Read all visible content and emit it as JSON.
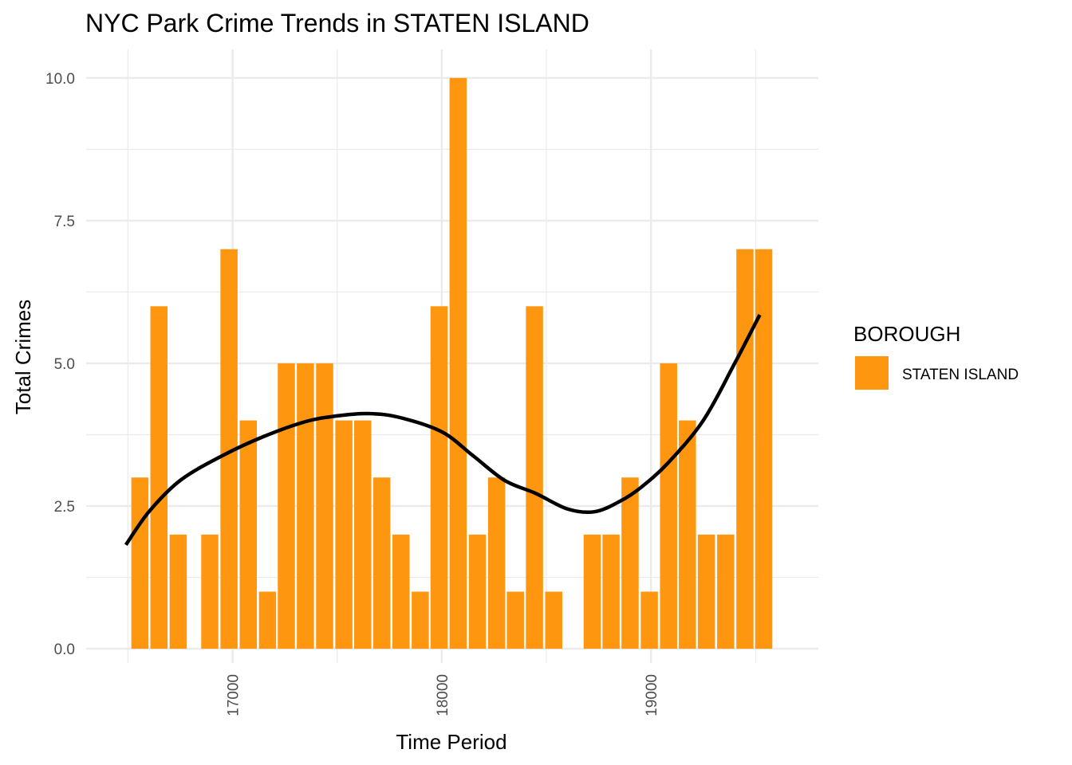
{
  "chart_data": {
    "type": "bar",
    "title": "NYC Park Crime Trends in STATEN ISLAND",
    "xlabel": "Time Period",
    "ylabel": "Total Crimes",
    "x": [
      16557,
      16648,
      16740,
      16891,
      16983,
      17075,
      17167,
      17257,
      17348,
      17440,
      17532,
      17622,
      17713,
      17805,
      17897,
      17987,
      18078,
      18170,
      18262,
      18352,
      18443,
      18535,
      18719,
      18809,
      18900,
      18992,
      19084,
      19174,
      19265,
      19357,
      19449,
      19539
    ],
    "values": [
      3,
      6,
      2,
      2,
      7,
      4,
      1,
      5,
      5,
      5,
      4,
      4,
      3,
      2,
      1,
      6,
      10,
      2,
      3,
      1,
      6,
      1,
      2,
      2,
      3,
      1,
      5,
      4,
      2,
      2,
      7,
      7
    ],
    "xlim": [
      16300,
      19800
    ],
    "ylim": [
      -0.25,
      10.5
    ],
    "x_ticks": [
      "17000",
      "18000",
      "19000"
    ],
    "y_ticks": [
      "0.0",
      "2.5",
      "5.0",
      "7.5",
      "10.0"
    ],
    "trend": {
      "x": [
        16490,
        16600,
        16750,
        16950,
        17150,
        17350,
        17500,
        17650,
        17800,
        18000,
        18150,
        18300,
        18450,
        18600,
        18730,
        18850,
        18950,
        19080,
        19250,
        19400,
        19520
      ],
      "y": [
        1.82,
        2.4,
        2.95,
        3.38,
        3.72,
        3.98,
        4.08,
        4.12,
        4.05,
        3.8,
        3.38,
        2.95,
        2.72,
        2.45,
        2.4,
        2.58,
        2.82,
        3.25,
        4.0,
        5.0,
        5.85
      ]
    },
    "colors": {
      "bar": "#ff9610",
      "trend": "#000000",
      "grid": "#ebebeb"
    },
    "legend": {
      "title": "BOROUGH",
      "label": "STATEN ISLAND",
      "position": "right"
    },
    "grid": true
  }
}
